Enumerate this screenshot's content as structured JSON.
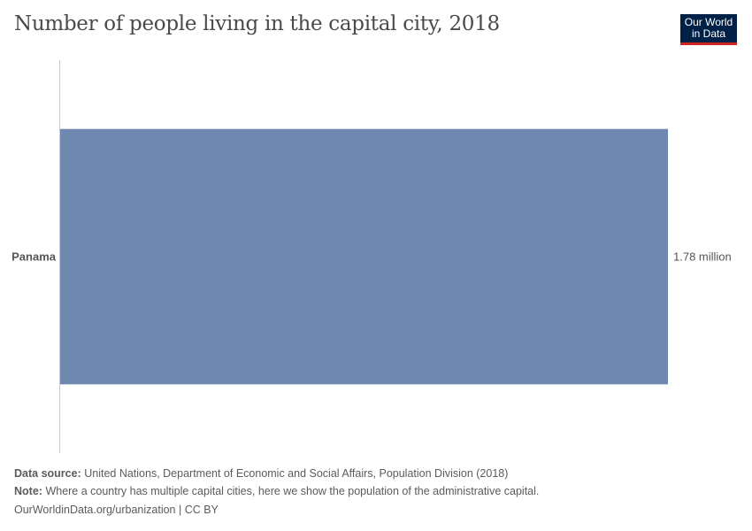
{
  "title": "Number of people living in the capital city, 2018",
  "logo": {
    "line1": "Our World",
    "line2": "in Data"
  },
  "chart_data": {
    "type": "bar",
    "orientation": "horizontal",
    "title": "Number of people living in the capital city, 2018",
    "categories": [
      "Panama"
    ],
    "values": [
      1780000
    ],
    "value_labels": [
      "1.78 million"
    ],
    "xlim": [
      0,
      1780000
    ],
    "bar_color": "#6f88b0",
    "grid": false
  },
  "footer": {
    "source_label": "Data source:",
    "source": "United Nations, Department of Economic and Social Affairs, Population Division (2018)",
    "note_label": "Note:",
    "note": "Where a country has multiple capital cities, here we show the population of the administrative capital.",
    "url": "OurWorldinData.org/urbanization | CC BY"
  }
}
